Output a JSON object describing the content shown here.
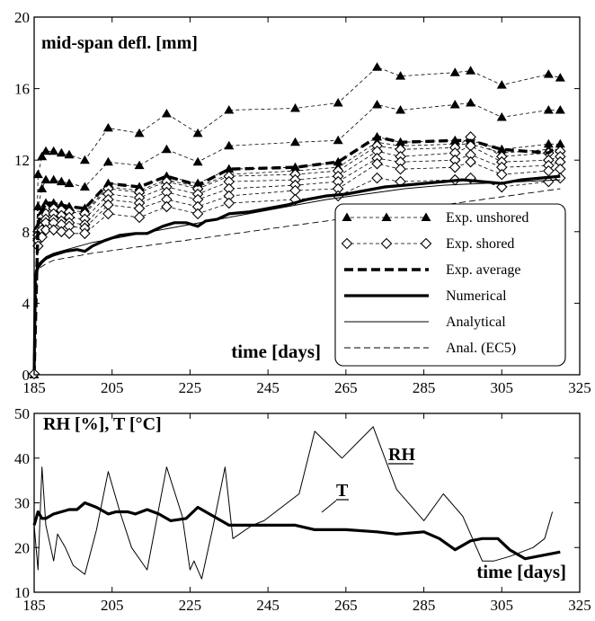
{
  "chart_data": [
    {
      "type": "line",
      "title": "mid-span defl. [mm]",
      "xlabel": "time [days]",
      "ylabel": "",
      "xlim": [
        185,
        325
      ],
      "ylim": [
        0,
        20
      ],
      "xticks": [
        185,
        205,
        225,
        245,
        265,
        285,
        305,
        325
      ],
      "yticks": [
        0,
        4,
        8,
        12,
        16,
        20
      ],
      "grid": false,
      "legend_position": "bottom-right",
      "series": [
        {
          "name": "Exp. unshored",
          "style": "thin-dashed-filled-triangle",
          "x": [
            185,
            186,
            187,
            188,
            190,
            192,
            194,
            198,
            204,
            212,
            219,
            227,
            235,
            252,
            263,
            273,
            279,
            293,
            297,
            305,
            317,
            320
          ],
          "y": [
            0,
            11.2,
            12.2,
            12.5,
            12.5,
            12.4,
            12.3,
            12.0,
            13.8,
            13.5,
            14.6,
            13.5,
            14.8,
            14.9,
            15.2,
            17.2,
            16.7,
            16.9,
            17.0,
            16.2,
            16.8,
            16.6
          ]
        },
        {
          "name": "",
          "style": "thin-dashed-filled-triangle",
          "x": [
            185,
            186,
            187,
            188,
            190,
            192,
            194,
            198,
            204,
            212,
            219,
            227,
            235,
            252,
            263,
            273,
            279,
            293,
            297,
            305,
            317,
            320
          ],
          "y": [
            0,
            9.4,
            10.4,
            10.9,
            10.9,
            10.8,
            10.7,
            10.5,
            11.9,
            11.7,
            12.6,
            11.9,
            12.8,
            13.0,
            13.1,
            15.1,
            14.8,
            15.1,
            15.2,
            14.4,
            14.8,
            14.8
          ]
        },
        {
          "name": "",
          "style": "thin-dashed-filled-triangle",
          "x": [
            185,
            186,
            187,
            188,
            190,
            192,
            194,
            198,
            204,
            212,
            219,
            227,
            235,
            252,
            263,
            273,
            279,
            293,
            297,
            305,
            317,
            320
          ],
          "y": [
            0,
            8.3,
            9.1,
            9.6,
            9.6,
            9.5,
            9.4,
            9.3,
            10.7,
            10.5,
            11.1,
            10.7,
            11.5,
            11.6,
            11.9,
            13.3,
            13.0,
            13.1,
            13.1,
            12.6,
            12.9,
            12.9
          ]
        },
        {
          "name": "",
          "style": "thin-dashed-filled-triangle",
          "x": [
            185,
            186,
            187,
            188,
            190,
            192,
            194,
            198,
            204,
            212,
            219,
            227,
            235,
            252,
            263,
            273,
            279,
            293,
            297,
            305,
            317,
            320
          ],
          "y": [
            0,
            8.0,
            8.9,
            9.4,
            9.4,
            9.3,
            9.2,
            9.1,
            10.5,
            10.3,
            10.9,
            10.5,
            11.2,
            11.4,
            11.6,
            13.0,
            12.8,
            12.9,
            12.9,
            12.4,
            12.6,
            12.6
          ]
        },
        {
          "name": "Exp. shored",
          "style": "thin-dashed-open-diamond",
          "x": [
            185,
            186,
            187,
            188,
            190,
            192,
            194,
            198,
            204,
            212,
            219,
            227,
            235,
            252,
            263,
            273,
            279,
            293,
            297,
            305,
            317,
            320
          ],
          "y": [
            0,
            8.0,
            8.8,
            9.3,
            9.3,
            9.2,
            9.1,
            9.0,
            10.4,
            10.2,
            10.8,
            10.4,
            11.1,
            11.2,
            11.4,
            12.8,
            12.6,
            12.7,
            13.3,
            12.2,
            12.4,
            12.5
          ]
        },
        {
          "name": "",
          "style": "thin-dashed-open-diamond",
          "x": [
            185,
            186,
            187,
            188,
            190,
            192,
            194,
            198,
            204,
            212,
            219,
            227,
            235,
            252,
            263,
            273,
            279,
            293,
            297,
            305,
            317,
            320
          ],
          "y": [
            0,
            7.8,
            8.5,
            9.0,
            9.0,
            8.9,
            8.8,
            8.7,
            10.1,
            9.9,
            10.5,
            10.1,
            10.8,
            10.9,
            11.1,
            12.5,
            12.2,
            12.4,
            12.8,
            11.9,
            12.0,
            12.2
          ]
        },
        {
          "name": "",
          "style": "thin-dashed-open-diamond",
          "x": [
            185,
            186,
            187,
            188,
            190,
            192,
            194,
            198,
            204,
            212,
            219,
            227,
            235,
            252,
            263,
            273,
            279,
            293,
            297,
            305,
            317,
            320
          ],
          "y": [
            0,
            7.6,
            8.3,
            8.7,
            8.7,
            8.6,
            8.5,
            8.4,
            9.8,
            9.6,
            10.2,
            9.8,
            10.4,
            10.6,
            10.8,
            12.1,
            11.9,
            12.0,
            12.3,
            11.6,
            11.7,
            11.9
          ]
        },
        {
          "name": "",
          "style": "thin-dashed-open-diamond",
          "x": [
            185,
            186,
            187,
            188,
            190,
            192,
            194,
            198,
            204,
            212,
            219,
            227,
            235,
            252,
            263,
            273,
            279,
            293,
            297,
            305,
            317,
            320
          ],
          "y": [
            0,
            7.5,
            8.1,
            8.5,
            8.5,
            8.4,
            8.3,
            8.2,
            9.5,
            9.3,
            9.8,
            9.4,
            10.0,
            10.3,
            10.4,
            11.8,
            11.5,
            11.6,
            11.9,
            11.2,
            11.4,
            11.5
          ]
        },
        {
          "name": "",
          "style": "thin-dashed-open-diamond",
          "x": [
            185,
            186,
            187,
            188,
            190,
            192,
            194,
            198,
            204,
            212,
            219,
            227,
            235,
            252,
            263,
            273,
            279,
            293,
            297,
            305,
            317,
            320
          ],
          "y": [
            0,
            7.2,
            7.7,
            8.1,
            8.1,
            8.0,
            7.9,
            7.9,
            9.0,
            8.8,
            9.4,
            9.0,
            9.6,
            9.8,
            10.0,
            11.0,
            10.8,
            10.9,
            11.0,
            10.5,
            10.8,
            11.0
          ]
        },
        {
          "name": "Exp. average",
          "style": "thick-dashed",
          "x": [
            185,
            186,
            187,
            188,
            190,
            192,
            194,
            198,
            204,
            212,
            219,
            227,
            235,
            252,
            263,
            273,
            279,
            293,
            297,
            305,
            317,
            320
          ],
          "y": [
            0,
            8.4,
            9.1,
            9.6,
            9.6,
            9.5,
            9.4,
            9.3,
            10.7,
            10.5,
            11.1,
            10.6,
            11.5,
            11.6,
            11.9,
            13.3,
            13.0,
            13.1,
            13.1,
            12.6,
            12.4,
            12.9
          ]
        },
        {
          "name": "Numerical",
          "style": "thick-solid",
          "x": [
            185,
            185.3,
            186,
            187,
            188,
            190,
            193,
            196,
            198,
            200,
            203,
            207,
            211,
            214,
            218,
            221,
            224,
            227,
            229,
            232,
            235,
            240,
            245,
            250,
            255,
            260,
            265,
            270,
            275,
            280,
            285,
            290,
            295,
            300,
            305,
            310,
            315,
            320
          ],
          "y": [
            0,
            5.5,
            6.0,
            6.3,
            6.5,
            6.7,
            6.9,
            7.0,
            6.9,
            7.2,
            7.5,
            7.8,
            7.9,
            7.9,
            8.3,
            8.5,
            8.5,
            8.3,
            8.6,
            8.7,
            9.0,
            9.1,
            9.3,
            9.5,
            9.8,
            10.0,
            10.1,
            10.3,
            10.5,
            10.6,
            10.7,
            10.8,
            10.9,
            10.8,
            10.7,
            10.9,
            11.0,
            11.1
          ]
        },
        {
          "name": "Analytical",
          "style": "thin-solid",
          "x": [
            185,
            185.3,
            186,
            188,
            190,
            195,
            200,
            210,
            220,
            230,
            240,
            250,
            260,
            270,
            280,
            290,
            300,
            310,
            320
          ],
          "y": [
            0,
            5.8,
            6.2,
            6.6,
            6.8,
            7.1,
            7.4,
            7.8,
            8.2,
            8.6,
            9.0,
            9.4,
            9.8,
            10.1,
            10.4,
            10.6,
            10.7,
            10.8,
            10.9
          ]
        },
        {
          "name": "Anal. (EC5)",
          "style": "thin-dashed",
          "x": [
            185,
            185.3,
            186,
            188,
            190,
            195,
            200,
            210,
            220,
            230,
            240,
            250,
            260,
            270,
            280,
            290,
            300,
            310,
            320
          ],
          "y": [
            0,
            5.5,
            5.9,
            6.2,
            6.4,
            6.6,
            6.8,
            7.1,
            7.4,
            7.7,
            8.0,
            8.3,
            8.6,
            8.9,
            9.2,
            9.5,
            9.8,
            10.1,
            10.4
          ]
        }
      ]
    },
    {
      "type": "line",
      "title": "RH [%], T [°C]",
      "xlabel": "time [days]",
      "ylabel": "",
      "xlim": [
        185,
        325
      ],
      "ylim": [
        10,
        50
      ],
      "xticks": [
        185,
        205,
        225,
        245,
        265,
        285,
        305,
        325
      ],
      "yticks": [
        10,
        20,
        30,
        40,
        50
      ],
      "grid": false,
      "series": [
        {
          "name": "RH",
          "style": "thin-solid",
          "x": [
            185,
            186,
            187,
            188,
            190,
            191,
            193,
            195,
            198,
            201,
            204,
            207,
            210,
            214,
            219,
            223,
            225,
            226,
            228,
            231,
            234,
            236,
            241,
            244,
            253,
            257,
            264,
            272,
            278,
            285,
            290,
            295,
            300,
            303,
            307,
            313,
            316,
            318
          ],
          "y": [
            25,
            15,
            38,
            25,
            17,
            23,
            20,
            16,
            14,
            24,
            37,
            28,
            20,
            15,
            38,
            27,
            15,
            17,
            13,
            25,
            38,
            22,
            25,
            26,
            32,
            46,
            40,
            47,
            33,
            26,
            32,
            27,
            17,
            17,
            18,
            20,
            22,
            28
          ]
        },
        {
          "name": "T",
          "style": "thick-solid",
          "x": [
            185,
            186,
            187,
            188,
            190,
            192,
            194,
            196,
            198,
            201,
            204,
            206,
            209,
            211,
            214,
            217,
            220,
            224,
            227,
            229,
            233,
            235,
            240,
            245,
            252,
            257,
            265,
            273,
            278,
            285,
            289,
            293,
            297,
            300,
            304,
            307,
            311,
            314,
            317,
            320
          ],
          "y": [
            25,
            28,
            26.5,
            26.5,
            27.5,
            28,
            28.5,
            28.5,
            30,
            29,
            27.5,
            28,
            28,
            27.5,
            28.5,
            27.5,
            26,
            26.5,
            29,
            28,
            26,
            25,
            25,
            25,
            25,
            24,
            24,
            23.5,
            23,
            23.5,
            22,
            19.5,
            21.5,
            22,
            22,
            19.5,
            17.5,
            18,
            18.5,
            19
          ]
        }
      ]
    }
  ]
}
